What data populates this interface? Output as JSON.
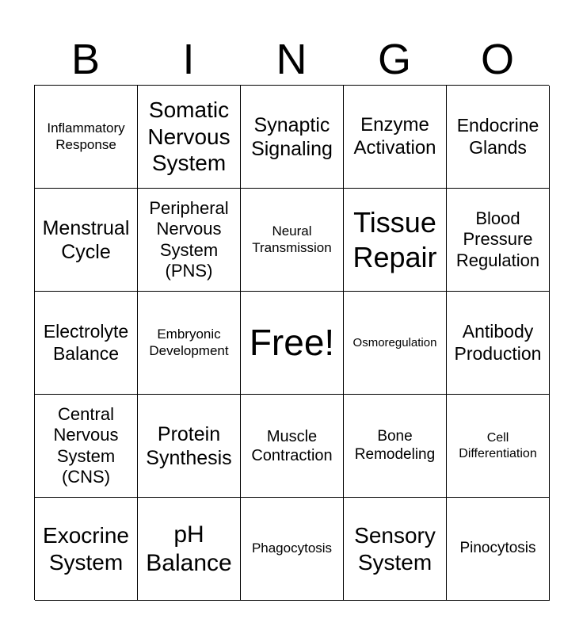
{
  "header": {
    "letters": [
      "B",
      "I",
      "N",
      "G",
      "O"
    ]
  },
  "cells": [
    "Inflammatory Response",
    "Somatic Nervous System",
    "Synaptic Signaling",
    "Enzyme Activation",
    "Endocrine Glands",
    "Menstrual Cycle",
    "Peripheral Nervous System (PNS)",
    "Neural Transmission",
    "Tissue Repair",
    "Blood Pressure Regulation",
    "Electrolyte Balance",
    "Embryonic Development",
    "Free!",
    "Osmoregulation",
    "Antibody Production",
    "Central Nervous System (CNS)",
    "Protein Synthesis",
    "Muscle Contraction",
    "Bone Remodeling",
    "Cell Differentiation",
    "Exocrine System",
    "pH Balance",
    "Phagocytosis",
    "Sensory System",
    "Pinocytosis"
  ]
}
